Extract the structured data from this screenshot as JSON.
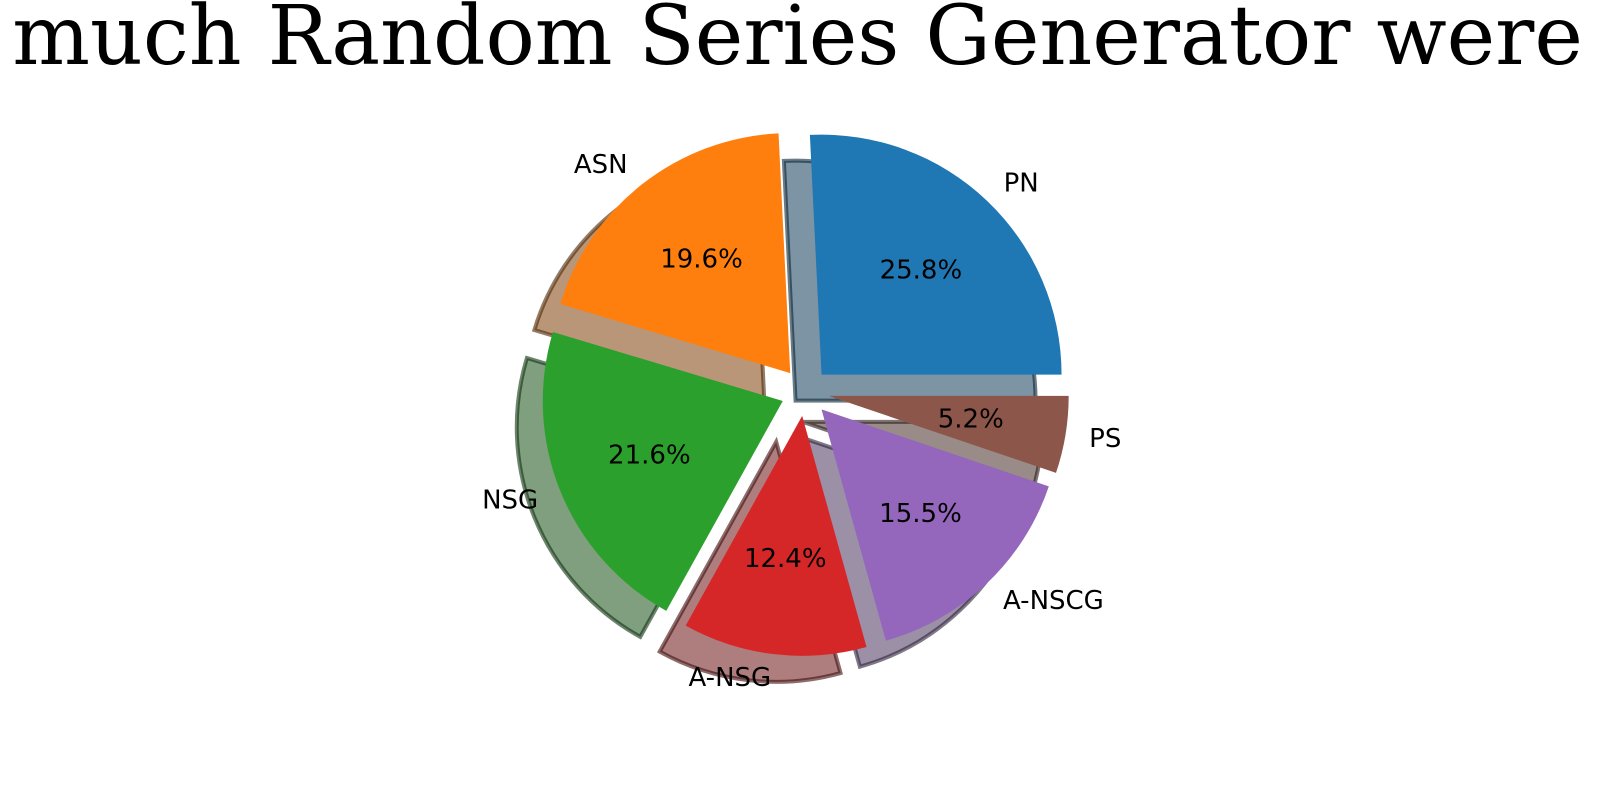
{
  "chart_data": {
    "type": "pie",
    "title": "How much Random Series Generator were used",
    "categories": [
      "PN",
      "ASN",
      "NSG",
      "A-NSG",
      "A-NSCG",
      "PS"
    ],
    "values": [
      25.8,
      19.6,
      21.6,
      12.4,
      15.5,
      5.2
    ],
    "value_labels": [
      "25.8%",
      "19.6%",
      "21.6%",
      "12.4%",
      "15.5%",
      "5.2%"
    ],
    "colors": [
      "#1f77b4",
      "#ff7f0e",
      "#2ca02c",
      "#d62728",
      "#9467bd",
      "#8c564b"
    ],
    "explode": [
      0.1,
      0.1,
      0.1,
      0.1,
      0.1,
      0.1
    ],
    "start_angle": 0,
    "direction": "counterclockwise",
    "shadow": true,
    "legend": "none"
  }
}
